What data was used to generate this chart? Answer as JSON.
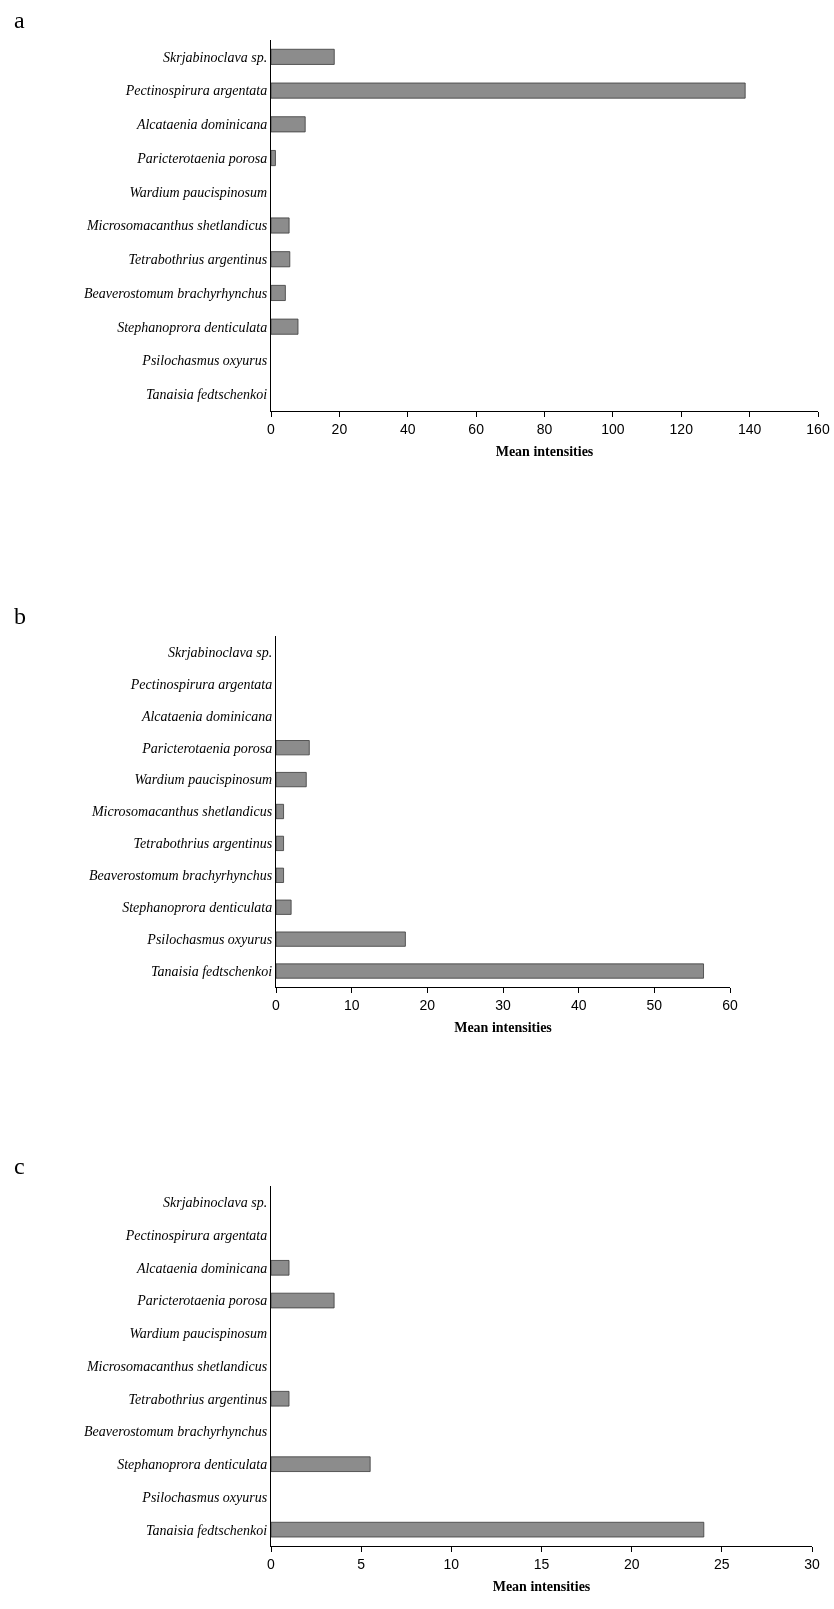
{
  "chart_data": [
    {
      "type": "bar",
      "orientation": "horizontal",
      "title": "a",
      "xlabel": "Mean intensities",
      "color": "#8c8c8c",
      "categories": [
        "Skrjabinoclava sp.",
        "Pectinospirura argentata",
        "Alcataenia dominicana",
        "Paricterotaenia porosa",
        "Wardium paucispinosum",
        "Microsomacanthus shetlandicus",
        "Tetrabothrius argentinus",
        "Beaverostomum brachyrhynchus",
        "Stephanoprora denticulata",
        "Psilochasmus oxyurus",
        "Tanaisia fedtschenkoi"
      ],
      "values": [
        18.5,
        138.7,
        10,
        1.3,
        0,
        5.3,
        5.5,
        4.2,
        7.9,
        0,
        0
      ],
      "xlim": [
        0,
        160
      ],
      "xticks": [
        0,
        20,
        40,
        60,
        80,
        100,
        120,
        140,
        160
      ]
    },
    {
      "type": "bar",
      "orientation": "horizontal",
      "title": "b",
      "xlabel": "Mean intensities",
      "color": "#8c8c8c",
      "categories": [
        "Skrjabinoclava sp.",
        "Pectinospirura argentata",
        "Alcataenia dominicana",
        "Paricterotaenia porosa",
        "Wardium paucispinosum",
        "Microsomacanthus shetlandicus",
        "Tetrabothrius argentinus",
        "Beaverostomum brachyrhynchus",
        "Stephanoprora denticulata",
        "Psilochasmus oxyurus",
        "Tanaisia fedtschenkoi"
      ],
      "values": [
        0,
        0,
        0,
        4.4,
        4.0,
        1.0,
        1.0,
        1.0,
        2.0,
        17.1,
        56.5
      ],
      "xlim": [
        0,
        60
      ],
      "xticks": [
        0,
        10,
        20,
        30,
        40,
        50,
        60
      ]
    },
    {
      "type": "bar",
      "orientation": "horizontal",
      "title": "c",
      "xlabel": "Mean intensities",
      "color": "#8c8c8c",
      "categories": [
        "Skrjabinoclava sp.",
        "Pectinospirura argentata",
        "Alcataenia dominicana",
        "Paricterotaenia porosa",
        "Wardium paucispinosum",
        "Microsomacanthus shetlandicus",
        "Tetrabothrius argentinus",
        "Beaverostomum brachyrhynchus",
        "Stephanoprora denticulata",
        "Psilochasmus oxyurus",
        "Tanaisia fedtschenkoi"
      ],
      "values": [
        0,
        0,
        1.0,
        3.5,
        0,
        0,
        1.0,
        0,
        5.5,
        0,
        24.0
      ],
      "xlim": [
        0,
        30
      ],
      "xticks": [
        0,
        5,
        10,
        15,
        20,
        25,
        30
      ]
    }
  ]
}
